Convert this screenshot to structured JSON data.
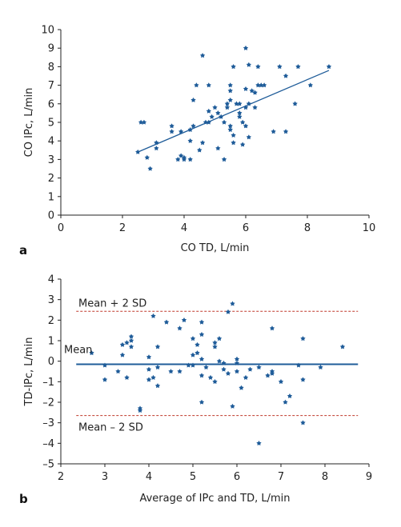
{
  "chart_data": [
    {
      "type": "scatter",
      "panel_label": "a",
      "xlabel": "CO TD, L/min",
      "ylabel": "CO IPc, L/min",
      "xlim": [
        0,
        10
      ],
      "ylim": [
        0,
        10
      ],
      "xticks": [
        "0",
        "2",
        "4",
        "6",
        "8",
        "10"
      ],
      "yticks": [
        "0",
        "1",
        "2",
        "3",
        "4",
        "5",
        "6",
        "7",
        "8",
        "9",
        "10"
      ],
      "marker_color": "#1f5c99",
      "line_color": "#1f5c99",
      "regression_line": [
        [
          2.5,
          3.4
        ],
        [
          8.7,
          7.8
        ]
      ],
      "points": [
        [
          2.5,
          3.4
        ],
        [
          2.6,
          5.0
        ],
        [
          2.7,
          5.0
        ],
        [
          2.8,
          3.1
        ],
        [
          2.9,
          2.5
        ],
        [
          3.1,
          3.6
        ],
        [
          3.1,
          3.9
        ],
        [
          3.6,
          4.8
        ],
        [
          3.6,
          4.5
        ],
        [
          3.8,
          3.0
        ],
        [
          3.9,
          3.2
        ],
        [
          3.9,
          4.5
        ],
        [
          4.0,
          3.0
        ],
        [
          4.0,
          3.1
        ],
        [
          4.2,
          3.0
        ],
        [
          4.2,
          4.0
        ],
        [
          4.2,
          4.6
        ],
        [
          4.3,
          4.8
        ],
        [
          4.3,
          6.2
        ],
        [
          4.4,
          7.0
        ],
        [
          4.5,
          3.5
        ],
        [
          4.6,
          8.6
        ],
        [
          4.6,
          3.9
        ],
        [
          4.7,
          5.0
        ],
        [
          4.8,
          5.6
        ],
        [
          4.8,
          5.0
        ],
        [
          4.8,
          7.0
        ],
        [
          4.9,
          5.3
        ],
        [
          5.0,
          5.8
        ],
        [
          5.1,
          5.5
        ],
        [
          5.1,
          3.6
        ],
        [
          5.2,
          5.3
        ],
        [
          5.3,
          3.0
        ],
        [
          5.3,
          5.0
        ],
        [
          5.4,
          6.0
        ],
        [
          5.4,
          5.8
        ],
        [
          5.5,
          4.6
        ],
        [
          5.5,
          4.8
        ],
        [
          5.5,
          6.2
        ],
        [
          5.5,
          6.7
        ],
        [
          5.5,
          7.0
        ],
        [
          5.6,
          4.3
        ],
        [
          5.6,
          3.9
        ],
        [
          5.6,
          8.0
        ],
        [
          5.7,
          6.0
        ],
        [
          5.8,
          5.5
        ],
        [
          5.8,
          5.3
        ],
        [
          5.8,
          6.0
        ],
        [
          5.9,
          3.8
        ],
        [
          5.9,
          5.0
        ],
        [
          6.0,
          6.8
        ],
        [
          6.0,
          5.8
        ],
        [
          6.0,
          4.8
        ],
        [
          6.0,
          9.0
        ],
        [
          6.1,
          6.0
        ],
        [
          6.1,
          4.2
        ],
        [
          6.1,
          8.1
        ],
        [
          6.2,
          6.7
        ],
        [
          6.3,
          5.8
        ],
        [
          6.3,
          6.6
        ],
        [
          6.4,
          7.0
        ],
        [
          6.4,
          8.0
        ],
        [
          6.5,
          7.0
        ],
        [
          6.6,
          7.0
        ],
        [
          6.9,
          4.5
        ],
        [
          7.1,
          8.0
        ],
        [
          7.3,
          7.5
        ],
        [
          7.3,
          4.5
        ],
        [
          7.6,
          6.0
        ],
        [
          7.7,
          8.0
        ],
        [
          8.1,
          7.0
        ],
        [
          8.7,
          8.0
        ]
      ]
    },
    {
      "type": "scatter",
      "panel_label": "b",
      "xlabel": "Average of IPc and TD, L/min",
      "ylabel": "TD-IPc, L/min",
      "xlim": [
        2,
        9
      ],
      "ylim": [
        -5,
        4
      ],
      "xticks": [
        "2",
        "3",
        "4",
        "5",
        "6",
        "7",
        "8",
        "9"
      ],
      "yticks": [
        "–5",
        "–4",
        "–3",
        "–2",
        "–1",
        "0",
        "1",
        "2",
        "3",
        "4"
      ],
      "marker_color": "#1f5c99",
      "mean_line_color": "#1f5c99",
      "limit_line_color": "#c0392b",
      "mean": -0.15,
      "upper_limit": 2.43,
      "lower_limit": -2.65,
      "annotations": {
        "upper": "Mean + 2 SD",
        "mean": "Mean",
        "lower": "Mean – 2 SD"
      },
      "points": [
        [
          2.7,
          0.4
        ],
        [
          3.0,
          -0.2
        ],
        [
          3.0,
          -0.9
        ],
        [
          3.3,
          -0.5
        ],
        [
          3.4,
          0.8
        ],
        [
          3.4,
          0.3
        ],
        [
          3.5,
          0.9
        ],
        [
          3.5,
          -0.8
        ],
        [
          3.6,
          1.0
        ],
        [
          3.6,
          0.7
        ],
        [
          3.6,
          1.2
        ],
        [
          3.8,
          -2.3
        ],
        [
          3.8,
          -2.4
        ],
        [
          4.0,
          -0.9
        ],
        [
          4.0,
          -0.4
        ],
        [
          4.0,
          0.2
        ],
        [
          4.1,
          2.2
        ],
        [
          4.1,
          -0.8
        ],
        [
          4.2,
          0.7
        ],
        [
          4.2,
          -1.2
        ],
        [
          4.2,
          -0.3
        ],
        [
          4.4,
          1.9
        ],
        [
          4.5,
          -0.5
        ],
        [
          4.7,
          1.6
        ],
        [
          4.7,
          -0.5
        ],
        [
          4.8,
          2.0
        ],
        [
          4.9,
          -0.2
        ],
        [
          5.0,
          1.1
        ],
        [
          5.0,
          -0.2
        ],
        [
          5.0,
          0.3
        ],
        [
          5.1,
          0.4
        ],
        [
          5.1,
          0.8
        ],
        [
          5.2,
          1.9
        ],
        [
          5.2,
          1.3
        ],
        [
          5.2,
          0.1
        ],
        [
          5.2,
          -0.7
        ],
        [
          5.2,
          -2.0
        ],
        [
          5.3,
          -0.3
        ],
        [
          5.4,
          -0.8
        ],
        [
          5.5,
          0.9
        ],
        [
          5.5,
          0.7
        ],
        [
          5.5,
          -1.0
        ],
        [
          5.6,
          0.0
        ],
        [
          5.6,
          1.1
        ],
        [
          5.7,
          -0.1
        ],
        [
          5.7,
          -0.4
        ],
        [
          5.8,
          2.4
        ],
        [
          5.8,
          -0.6
        ],
        [
          5.9,
          2.8
        ],
        [
          5.9,
          -2.2
        ],
        [
          6.0,
          0.1
        ],
        [
          6.0,
          -0.5
        ],
        [
          6.0,
          -0.1
        ],
        [
          6.1,
          -1.3
        ],
        [
          6.2,
          -0.8
        ],
        [
          6.3,
          -0.4
        ],
        [
          6.5,
          -0.3
        ],
        [
          6.5,
          -4.0
        ],
        [
          6.7,
          -0.7
        ],
        [
          6.8,
          -0.6
        ],
        [
          6.8,
          1.6
        ],
        [
          6.8,
          -0.5
        ],
        [
          7.0,
          -1.0
        ],
        [
          7.1,
          -2.0
        ],
        [
          7.2,
          -1.7
        ],
        [
          7.4,
          -0.2
        ],
        [
          7.5,
          -0.9
        ],
        [
          7.5,
          -3.0
        ],
        [
          7.5,
          1.1
        ],
        [
          7.9,
          -0.3
        ],
        [
          8.4,
          0.7
        ]
      ]
    }
  ]
}
